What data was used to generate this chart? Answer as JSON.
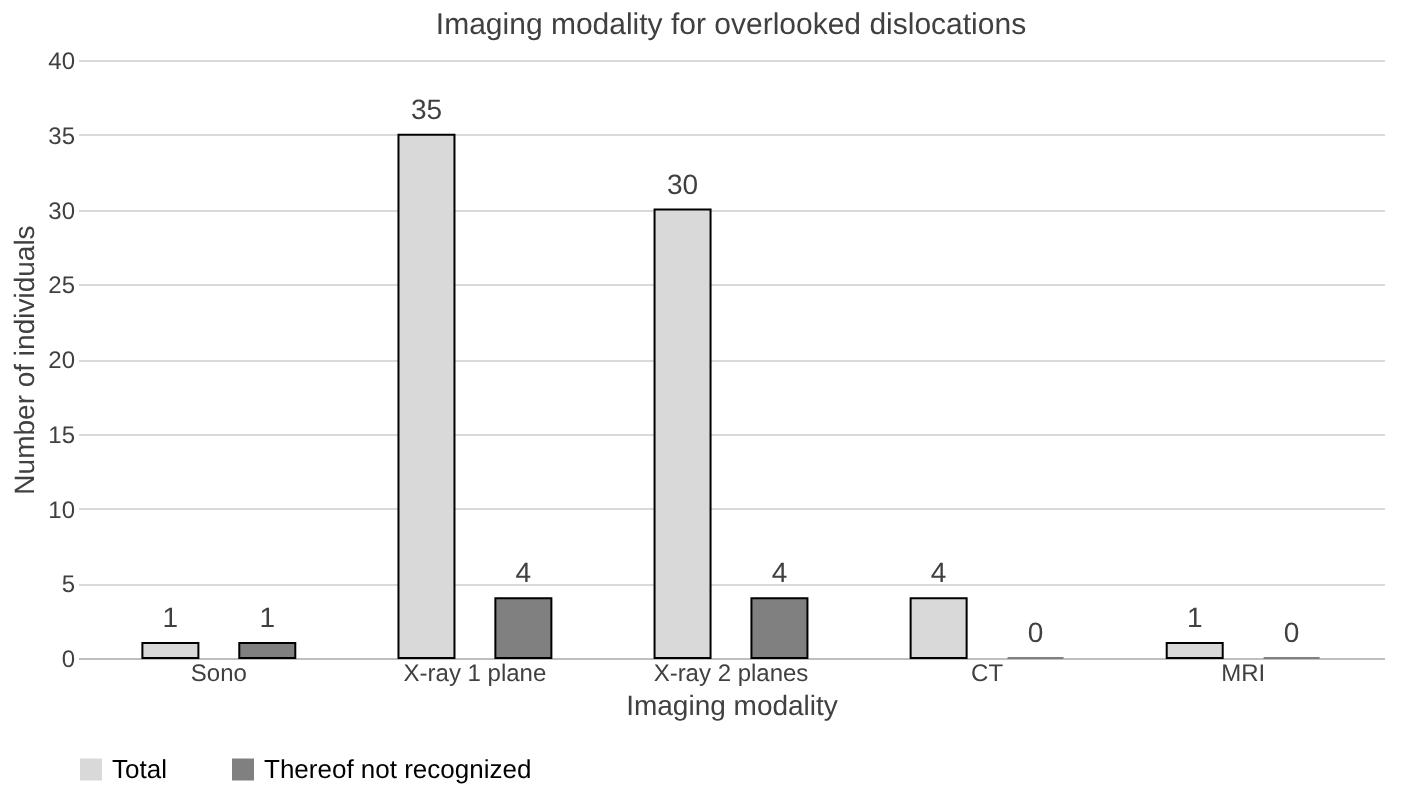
{
  "chart_data": {
    "type": "bar",
    "title": "Imaging modality for overlooked dislocations",
    "xlabel": "Imaging modality",
    "ylabel": "Number of individuals",
    "categories": [
      "Sono",
      "X-ray 1 plane",
      "X-ray 2 planes",
      "CT",
      "MRI"
    ],
    "series": [
      {
        "name": "Total",
        "color": "#d9d9d9",
        "values": [
          1,
          35,
          30,
          4,
          1
        ]
      },
      {
        "name": "Thereof not recognized",
        "color": "#808080",
        "values": [
          1,
          4,
          4,
          0,
          0
        ]
      }
    ],
    "ylim": [
      0,
      40
    ],
    "yticks": [
      0,
      5,
      10,
      15,
      20,
      25,
      30,
      35,
      40
    ],
    "grid": "y",
    "legend": "bottom",
    "data_labels": true
  }
}
